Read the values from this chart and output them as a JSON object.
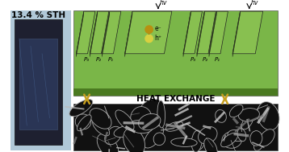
{
  "title_text": "13.4 % STH",
  "heat_exchange_text": "HEAT EXCHANGE",
  "hv_text": "hv",
  "e_text": "e⁻",
  "h_text": "h⁺",
  "p_labels": [
    "P₃",
    "P₂",
    "P₁"
  ],
  "bg_color": "#ffffff",
  "green_color": "#7ab648",
  "dark_green": "#4a7a20",
  "arrow_color": "#c8a020",
  "panel_bg": "#b0c8d8",
  "cell_color": "#88c050",
  "cell_dark": "#3a6010",
  "cell_outline": "#222222",
  "sem_bg": "#111111",
  "sem_edge": "#444444"
}
